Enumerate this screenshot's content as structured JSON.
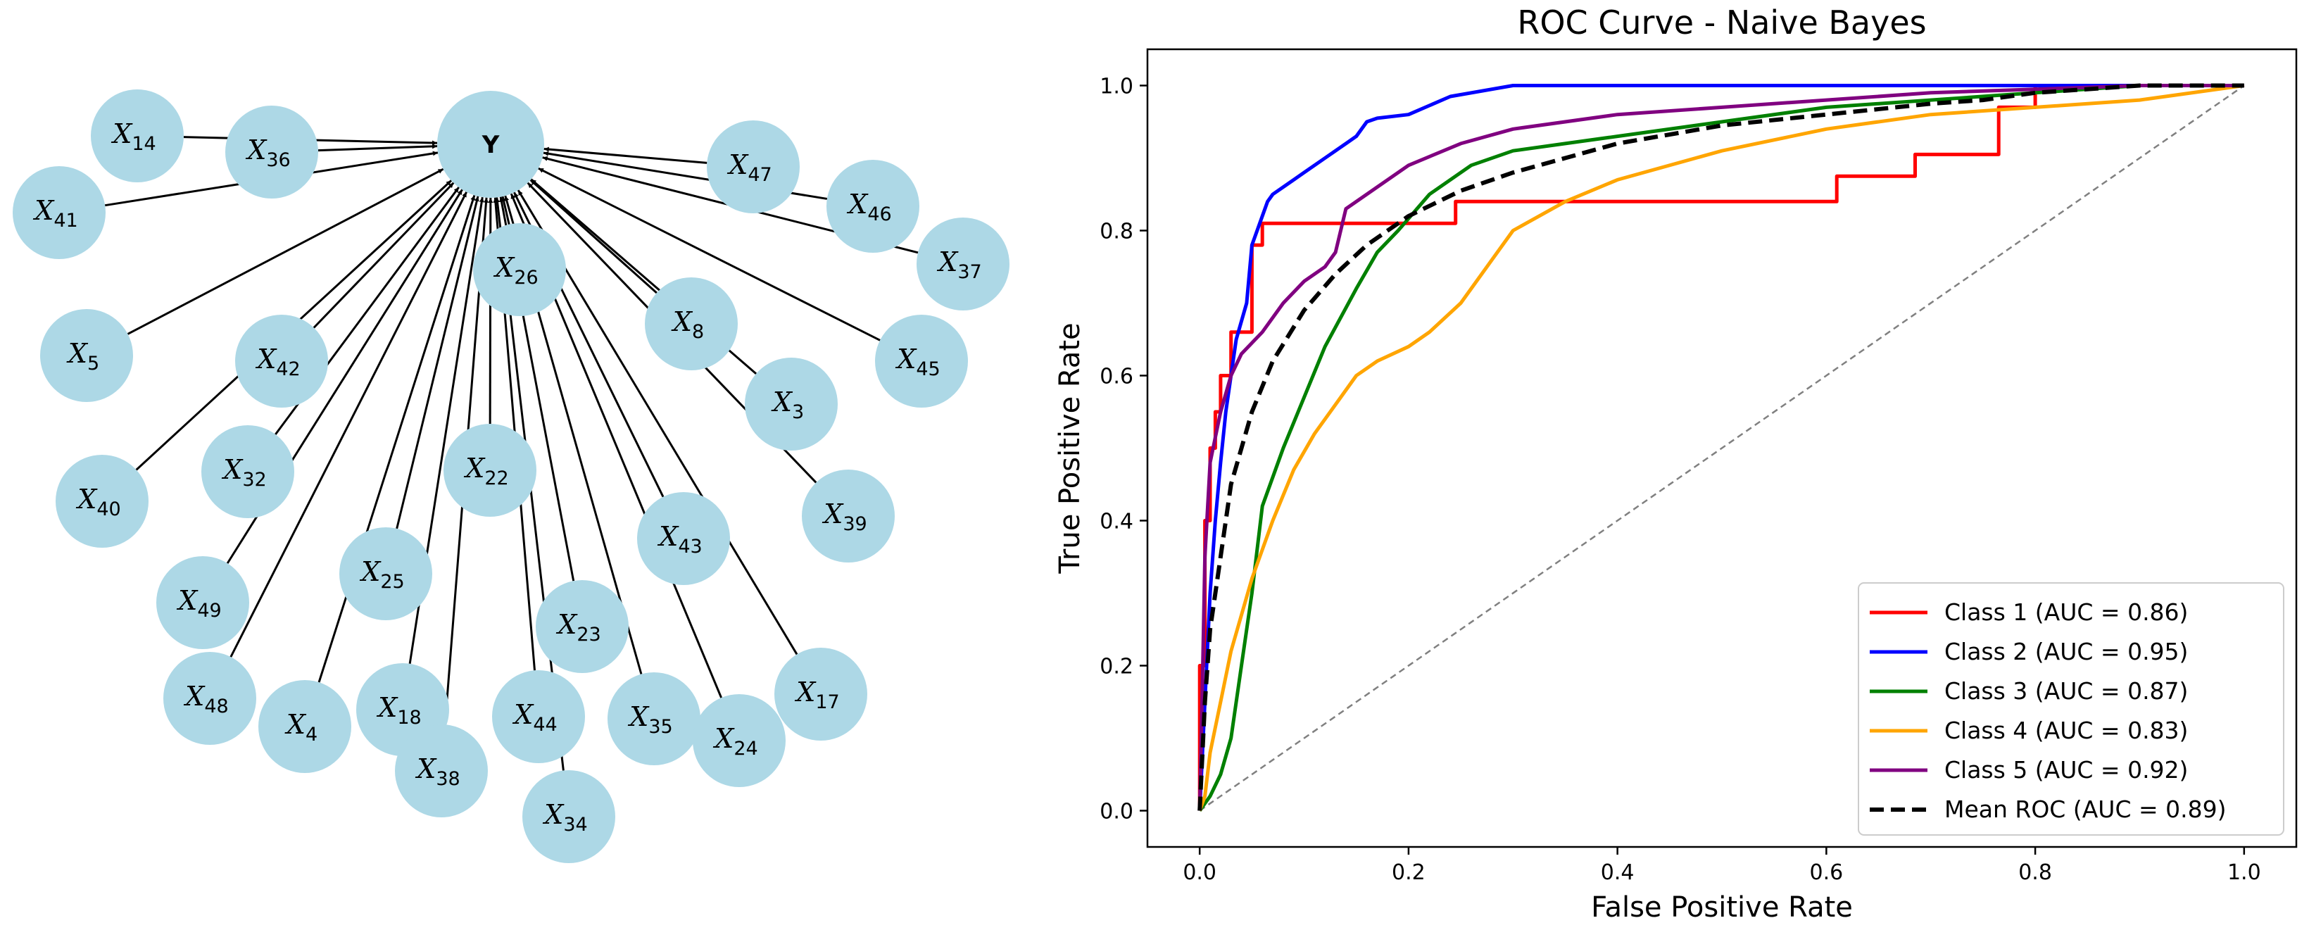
{
  "colors": {
    "node_fill": "#add8e6",
    "edge": "#000000",
    "class1": "#ff0000",
    "class2": "#0000ff",
    "class3": "#008000",
    "class4": "#ffa500",
    "class5": "#800080",
    "mean": "#000000",
    "diagonal": "#808080"
  },
  "network": {
    "target": "Y",
    "features": [
      {
        "id": "X14",
        "base": "X",
        "sub": "14"
      },
      {
        "id": "X36",
        "base": "X",
        "sub": "36"
      },
      {
        "id": "X41",
        "base": "X",
        "sub": "41"
      },
      {
        "id": "X47",
        "base": "X",
        "sub": "47"
      },
      {
        "id": "X46",
        "base": "X",
        "sub": "46"
      },
      {
        "id": "X37",
        "base": "X",
        "sub": "37"
      },
      {
        "id": "X26",
        "base": "X",
        "sub": "26"
      },
      {
        "id": "X8",
        "base": "X",
        "sub": "8"
      },
      {
        "id": "X5",
        "base": "X",
        "sub": "5"
      },
      {
        "id": "X42",
        "base": "X",
        "sub": "42"
      },
      {
        "id": "X45",
        "base": "X",
        "sub": "45"
      },
      {
        "id": "X3",
        "base": "X",
        "sub": "3"
      },
      {
        "id": "X40",
        "base": "X",
        "sub": "40"
      },
      {
        "id": "X32",
        "base": "X",
        "sub": "32"
      },
      {
        "id": "X22",
        "base": "X",
        "sub": "22"
      },
      {
        "id": "X39",
        "base": "X",
        "sub": "39"
      },
      {
        "id": "X43",
        "base": "X",
        "sub": "43"
      },
      {
        "id": "X25",
        "base": "X",
        "sub": "25"
      },
      {
        "id": "X49",
        "base": "X",
        "sub": "49"
      },
      {
        "id": "X23",
        "base": "X",
        "sub": "23"
      },
      {
        "id": "X48",
        "base": "X",
        "sub": "48"
      },
      {
        "id": "X4",
        "base": "X",
        "sub": "4"
      },
      {
        "id": "X18",
        "base": "X",
        "sub": "18"
      },
      {
        "id": "X44",
        "base": "X",
        "sub": "44"
      },
      {
        "id": "X35",
        "base": "X",
        "sub": "35"
      },
      {
        "id": "X24",
        "base": "X",
        "sub": "24"
      },
      {
        "id": "X17",
        "base": "X",
        "sub": "17"
      },
      {
        "id": "X38",
        "base": "X",
        "sub": "38"
      },
      {
        "id": "X34",
        "base": "X",
        "sub": "34"
      }
    ]
  },
  "chart_data": {
    "type": "line",
    "title": "ROC Curve - Naive Bayes",
    "xlabel": "False Positive Rate",
    "ylabel": "True Positive Rate",
    "xlim": [
      -0.05,
      1.05
    ],
    "ylim": [
      -0.05,
      1.05
    ],
    "xticks": [
      0.0,
      0.2,
      0.4,
      0.6,
      0.8,
      1.0
    ],
    "xtick_labels": [
      "0.0",
      "0.2",
      "0.4",
      "0.6",
      "0.8",
      "1.0"
    ],
    "yticks": [
      0.0,
      0.2,
      0.4,
      0.6,
      0.8,
      1.0
    ],
    "ytick_labels": [
      "0.0",
      "0.2",
      "0.4",
      "0.6",
      "0.8",
      "1.0"
    ],
    "legend_position": "lower-right",
    "diagonal": {
      "x": [
        0,
        1
      ],
      "y": [
        0,
        1
      ],
      "style": "dashed"
    },
    "series": [
      {
        "name": "Class 1 (AUC = 0.86)",
        "color_key": "class1",
        "style": "solid",
        "x": [
          0,
          0,
          0.005,
          0.005,
          0.01,
          0.01,
          0.015,
          0.015,
          0.02,
          0.02,
          0.03,
          0.03,
          0.05,
          0.05,
          0.06,
          0.06,
          0.245,
          0.245,
          0.61,
          0.61,
          0.685,
          0.685,
          0.765,
          0.765,
          0.8,
          0.8,
          1.0
        ],
        "y": [
          0,
          0.2,
          0.2,
          0.4,
          0.4,
          0.5,
          0.5,
          0.55,
          0.55,
          0.6,
          0.6,
          0.66,
          0.66,
          0.78,
          0.78,
          0.81,
          0.81,
          0.84,
          0.84,
          0.875,
          0.875,
          0.905,
          0.905,
          0.97,
          0.97,
          1.0,
          1.0
        ]
      },
      {
        "name": "Class 2 (AUC = 0.95)",
        "color_key": "class2",
        "style": "solid",
        "x": [
          0,
          0.005,
          0.01,
          0.015,
          0.02,
          0.025,
          0.03,
          0.035,
          0.045,
          0.05,
          0.06,
          0.065,
          0.07,
          0.08,
          0.09,
          0.1,
          0.12,
          0.13,
          0.14,
          0.15,
          0.16,
          0.17,
          0.2,
          0.24,
          0.3,
          0.5,
          0.8,
          1.0
        ],
        "y": [
          0,
          0.15,
          0.3,
          0.4,
          0.48,
          0.55,
          0.6,
          0.65,
          0.7,
          0.78,
          0.82,
          0.84,
          0.85,
          0.86,
          0.87,
          0.88,
          0.9,
          0.91,
          0.92,
          0.93,
          0.95,
          0.955,
          0.96,
          0.985,
          1.0,
          1.0,
          1.0,
          1.0
        ]
      },
      {
        "name": "Class 3 (AUC = 0.87)",
        "color_key": "class3",
        "style": "solid",
        "x": [
          0,
          0.005,
          0.01,
          0.02,
          0.03,
          0.04,
          0.05,
          0.06,
          0.08,
          0.1,
          0.12,
          0.15,
          0.17,
          0.19,
          0.22,
          0.26,
          0.3,
          0.35,
          0.4,
          0.5,
          0.6,
          0.7,
          0.8,
          0.9,
          1.0
        ],
        "y": [
          0,
          0.01,
          0.02,
          0.05,
          0.1,
          0.2,
          0.3,
          0.42,
          0.5,
          0.57,
          0.64,
          0.72,
          0.77,
          0.8,
          0.85,
          0.89,
          0.91,
          0.92,
          0.93,
          0.95,
          0.97,
          0.98,
          0.99,
          1.0,
          1.0
        ]
      },
      {
        "name": "Class 4 (AUC = 0.83)",
        "color_key": "class4",
        "style": "solid",
        "x": [
          0,
          0.005,
          0.01,
          0.02,
          0.03,
          0.05,
          0.07,
          0.09,
          0.11,
          0.13,
          0.15,
          0.17,
          0.2,
          0.22,
          0.25,
          0.28,
          0.3,
          0.35,
          0.4,
          0.5,
          0.6,
          0.7,
          0.8,
          0.9,
          1.0
        ],
        "y": [
          0,
          0.02,
          0.08,
          0.15,
          0.22,
          0.32,
          0.4,
          0.47,
          0.52,
          0.56,
          0.6,
          0.62,
          0.64,
          0.66,
          0.7,
          0.76,
          0.8,
          0.84,
          0.87,
          0.91,
          0.94,
          0.96,
          0.97,
          0.98,
          1.0
        ]
      },
      {
        "name": "Class 5 (AUC = 0.92)",
        "color_key": "class5",
        "style": "solid",
        "x": [
          0,
          0.003,
          0.005,
          0.01,
          0.02,
          0.03,
          0.04,
          0.06,
          0.08,
          0.1,
          0.12,
          0.13,
          0.14,
          0.17,
          0.2,
          0.25,
          0.3,
          0.4,
          0.5,
          0.6,
          0.7,
          0.8,
          0.9,
          1.0
        ],
        "y": [
          0,
          0.2,
          0.35,
          0.48,
          0.55,
          0.6,
          0.63,
          0.66,
          0.7,
          0.73,
          0.75,
          0.77,
          0.83,
          0.86,
          0.89,
          0.92,
          0.94,
          0.96,
          0.97,
          0.98,
          0.99,
          0.995,
          1.0,
          1.0
        ]
      },
      {
        "name": "Mean ROC (AUC = 0.89)",
        "color_key": "mean",
        "style": "dashed",
        "x": [
          0,
          0.005,
          0.01,
          0.02,
          0.03,
          0.05,
          0.07,
          0.1,
          0.13,
          0.16,
          0.2,
          0.25,
          0.3,
          0.35,
          0.4,
          0.5,
          0.6,
          0.7,
          0.75,
          0.8,
          0.9,
          1.0
        ],
        "y": [
          0,
          0.15,
          0.25,
          0.35,
          0.45,
          0.55,
          0.62,
          0.69,
          0.74,
          0.78,
          0.82,
          0.855,
          0.88,
          0.9,
          0.92,
          0.945,
          0.96,
          0.975,
          0.98,
          0.99,
          1.0,
          1.0
        ]
      }
    ]
  }
}
